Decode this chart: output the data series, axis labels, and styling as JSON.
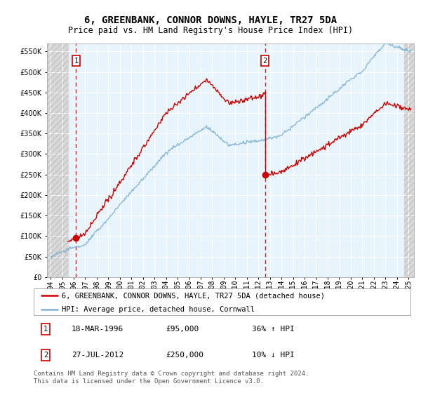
{
  "title": "6, GREENBANK, CONNOR DOWNS, HAYLE, TR27 5DA",
  "subtitle": "Price paid vs. HM Land Registry's House Price Index (HPI)",
  "ylim": [
    0,
    570000
  ],
  "yticks": [
    0,
    50000,
    100000,
    150000,
    200000,
    250000,
    300000,
    350000,
    400000,
    450000,
    500000,
    550000
  ],
  "xlim_start": 1993.7,
  "xlim_end": 2025.5,
  "hatch_left_end": 1995.5,
  "hatch_right_start": 2024.6,
  "sale1_year": 1996.21,
  "sale1_price": 95000,
  "sale2_year": 2012.57,
  "sale2_price": 250000,
  "sale1_label": "1",
  "sale2_label": "2",
  "legend_line1": "6, GREENBANK, CONNOR DOWNS, HAYLE, TR27 5DA (detached house)",
  "legend_line2": "HPI: Average price, detached house, Cornwall",
  "table_row1": [
    "1",
    "18-MAR-1996",
    "£95,000",
    "36% ↑ HPI"
  ],
  "table_row2": [
    "2",
    "27-JUL-2012",
    "£250,000",
    "10% ↓ HPI"
  ],
  "footer": "Contains HM Land Registry data © Crown copyright and database right 2024.\nThis data is licensed under the Open Government Licence v3.0.",
  "red_color": "#cc0000",
  "blue_color": "#7fb3d3",
  "bg_plot": "#e8f4fb",
  "bg_hatch_color": "#d8d8d8",
  "grid_color": "#ffffff",
  "title_fontsize": 10,
  "subtitle_fontsize": 8.5,
  "tick_fontsize": 7,
  "legend_fontsize": 7.5,
  "table_fontsize": 8,
  "footer_fontsize": 6.5
}
